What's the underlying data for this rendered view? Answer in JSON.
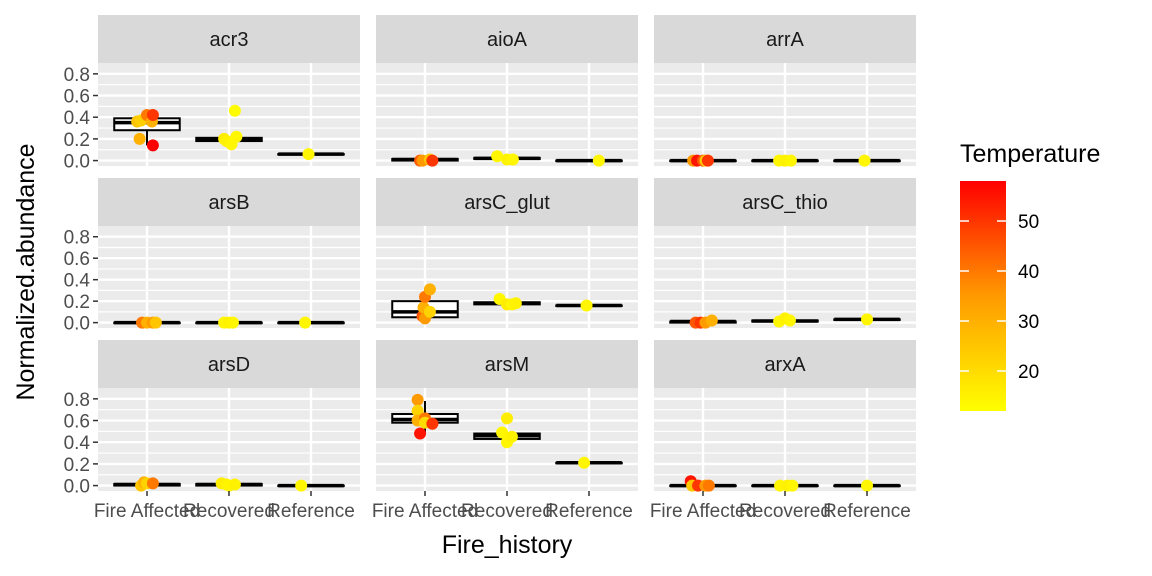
{
  "chart_data": {
    "type": "boxplot",
    "xlabel": "Fire_history",
    "ylabel": "Normalized.abundance",
    "categories": [
      "Fire Affected",
      "Recovered",
      "Reference"
    ],
    "ylim": [
      -0.05,
      0.9
    ],
    "yticks": [
      0.0,
      0.2,
      0.4,
      0.6,
      0.8
    ],
    "ytick_labels": [
      "0.0",
      "0.2",
      "0.4",
      "0.6",
      "0.8"
    ],
    "grid": true,
    "legend": {
      "title": "Temperature",
      "position": "right",
      "type": "colorbar",
      "range": [
        12,
        58
      ],
      "ticks": [
        20,
        30,
        40,
        50
      ],
      "tick_labels": [
        "20",
        "30",
        "40",
        "50"
      ],
      "colors": {
        "low": "#FFFF00",
        "high": "#FF0000"
      }
    },
    "panels": [
      {
        "name": "acr3",
        "boxes": [
          {
            "category": "Fire Affected",
            "q1": 0.28,
            "median": 0.35,
            "q3": 0.39,
            "lo": 0.14,
            "hi": 0.39
          },
          {
            "category": "Recovered",
            "q1": 0.18,
            "median": 0.19,
            "q3": 0.21,
            "lo": 0.18,
            "hi": 0.21
          },
          {
            "category": "Reference",
            "q1": 0.06,
            "median": 0.06,
            "q3": 0.06,
            "lo": 0.06,
            "hi": 0.06
          }
        ],
        "points": [
          {
            "category": "Fire Affected",
            "dx": -0.15,
            "y": 0.2,
            "t": 30
          },
          {
            "category": "Fire Affected",
            "dx": -0.2,
            "y": 0.36,
            "t": 25
          },
          {
            "category": "Fire Affected",
            "dx": -0.12,
            "y": 0.37,
            "t": 23
          },
          {
            "category": "Fire Affected",
            "dx": 0.0,
            "y": 0.42,
            "t": 40
          },
          {
            "category": "Fire Affected",
            "dx": 0.1,
            "y": 0.36,
            "t": 30
          },
          {
            "category": "Fire Affected",
            "dx": 0.12,
            "y": 0.42,
            "t": 50
          },
          {
            "category": "Fire Affected",
            "dx": 0.12,
            "y": 0.14,
            "t": 58
          },
          {
            "category": "Recovered",
            "dx": -0.1,
            "y": 0.2,
            "t": 16
          },
          {
            "category": "Recovered",
            "dx": -0.05,
            "y": 0.18,
            "t": 15
          },
          {
            "category": "Recovered",
            "dx": 0.05,
            "y": 0.15,
            "t": 14
          },
          {
            "category": "Recovered",
            "dx": 0.12,
            "y": 0.46,
            "t": 13
          },
          {
            "category": "Recovered",
            "dx": 0.15,
            "y": 0.22,
            "t": 14
          },
          {
            "category": "Reference",
            "dx": -0.05,
            "y": 0.06,
            "t": 14
          }
        ]
      },
      {
        "name": "aioA",
        "boxes": [
          {
            "category": "Fire Affected",
            "q1": 0.0,
            "median": 0.01,
            "q3": 0.015,
            "lo": 0.0,
            "hi": 0.02
          },
          {
            "category": "Recovered",
            "q1": 0.015,
            "median": 0.02,
            "q3": 0.025,
            "lo": 0.01,
            "hi": 0.03
          },
          {
            "category": "Reference",
            "q1": 0.0,
            "median": 0.0,
            "q3": 0.0,
            "lo": 0.0,
            "hi": 0.0
          }
        ],
        "points": [
          {
            "category": "Fire Affected",
            "dx": -0.1,
            "y": 0.0,
            "t": 45
          },
          {
            "category": "Fire Affected",
            "dx": -0.05,
            "y": 0.0,
            "t": 35
          },
          {
            "category": "Fire Affected",
            "dx": 0.1,
            "y": 0.01,
            "t": 25
          },
          {
            "category": "Fire Affected",
            "dx": 0.15,
            "y": 0.0,
            "t": 50
          },
          {
            "category": "Recovered",
            "dx": -0.2,
            "y": 0.04,
            "t": 14
          },
          {
            "category": "Recovered",
            "dx": 0.0,
            "y": 0.01,
            "t": 15
          },
          {
            "category": "Recovered",
            "dx": 0.12,
            "y": 0.01,
            "t": 14
          },
          {
            "category": "Reference",
            "dx": 0.2,
            "y": 0.0,
            "t": 14
          }
        ]
      },
      {
        "name": "arrA",
        "boxes": [
          {
            "category": "Fire Affected",
            "q1": 0.0,
            "median": 0.0,
            "q3": 0.0,
            "lo": 0.0,
            "hi": 0.0
          },
          {
            "category": "Recovered",
            "q1": 0.0,
            "median": 0.0,
            "q3": 0.0,
            "lo": 0.0,
            "hi": 0.0
          },
          {
            "category": "Reference",
            "q1": 0.0,
            "median": 0.0,
            "q3": 0.0,
            "lo": 0.0,
            "hi": 0.0
          }
        ],
        "points": [
          {
            "category": "Fire Affected",
            "dx": -0.2,
            "y": 0.0,
            "t": 35
          },
          {
            "category": "Fire Affected",
            "dx": -0.12,
            "y": 0.0,
            "t": 55
          },
          {
            "category": "Fire Affected",
            "dx": 0.0,
            "y": 0.0,
            "t": 45
          },
          {
            "category": "Fire Affected",
            "dx": 0.05,
            "y": 0.0,
            "t": 25
          },
          {
            "category": "Fire Affected",
            "dx": 0.1,
            "y": 0.0,
            "t": 50
          },
          {
            "category": "Recovered",
            "dx": -0.12,
            "y": 0.0,
            "t": 14
          },
          {
            "category": "Recovered",
            "dx": 0.0,
            "y": 0.0,
            "t": 15
          },
          {
            "category": "Recovered",
            "dx": 0.12,
            "y": 0.0,
            "t": 14
          },
          {
            "category": "Reference",
            "dx": -0.05,
            "y": 0.0,
            "t": 14
          }
        ]
      },
      {
        "name": "arsB",
        "boxes": [
          {
            "category": "Fire Affected",
            "q1": 0.0,
            "median": 0.0,
            "q3": 0.0,
            "lo": 0.0,
            "hi": 0.0
          },
          {
            "category": "Recovered",
            "q1": 0.0,
            "median": 0.0,
            "q3": 0.0,
            "lo": 0.0,
            "hi": 0.0
          },
          {
            "category": "Reference",
            "q1": 0.0,
            "median": 0.0,
            "q3": 0.0,
            "lo": 0.0,
            "hi": 0.0
          }
        ],
        "points": [
          {
            "category": "Fire Affected",
            "dx": -0.1,
            "y": 0.0,
            "t": 40
          },
          {
            "category": "Fire Affected",
            "dx": 0.0,
            "y": 0.0,
            "t": 30
          },
          {
            "category": "Fire Affected",
            "dx": 0.12,
            "y": 0.0,
            "t": 35
          },
          {
            "category": "Fire Affected",
            "dx": 0.18,
            "y": 0.0,
            "t": 25
          },
          {
            "category": "Recovered",
            "dx": -0.1,
            "y": 0.0,
            "t": 14
          },
          {
            "category": "Recovered",
            "dx": 0.0,
            "y": 0.0,
            "t": 15
          },
          {
            "category": "Recovered",
            "dx": 0.08,
            "y": 0.0,
            "t": 14
          },
          {
            "category": "Reference",
            "dx": -0.12,
            "y": 0.0,
            "t": 14
          }
        ]
      },
      {
        "name": "arsC_glut",
        "boxes": [
          {
            "category": "Fire Affected",
            "q1": 0.05,
            "median": 0.1,
            "q3": 0.2,
            "lo": 0.03,
            "hi": 0.31
          },
          {
            "category": "Recovered",
            "q1": 0.17,
            "median": 0.18,
            "q3": 0.19,
            "lo": 0.17,
            "hi": 0.2
          },
          {
            "category": "Reference",
            "q1": 0.16,
            "median": 0.16,
            "q3": 0.16,
            "lo": 0.16,
            "hi": 0.16
          }
        ],
        "points": [
          {
            "category": "Fire Affected",
            "dx": -0.05,
            "y": 0.06,
            "t": 45
          },
          {
            "category": "Fire Affected",
            "dx": -0.03,
            "y": 0.14,
            "t": 30
          },
          {
            "category": "Fire Affected",
            "dx": 0.0,
            "y": 0.24,
            "t": 40
          },
          {
            "category": "Fire Affected",
            "dx": 0.0,
            "y": 0.04,
            "t": 35
          },
          {
            "category": "Fire Affected",
            "dx": 0.1,
            "y": 0.31,
            "t": 30
          },
          {
            "category": "Fire Affected",
            "dx": 0.1,
            "y": 0.1,
            "t": 22
          },
          {
            "category": "Recovered",
            "dx": -0.15,
            "y": 0.22,
            "t": 14
          },
          {
            "category": "Recovered",
            "dx": 0.0,
            "y": 0.17,
            "t": 16
          },
          {
            "category": "Recovered",
            "dx": 0.1,
            "y": 0.17,
            "t": 14
          },
          {
            "category": "Recovered",
            "dx": 0.18,
            "y": 0.18,
            "t": 15
          },
          {
            "category": "Reference",
            "dx": -0.05,
            "y": 0.16,
            "t": 14
          }
        ]
      },
      {
        "name": "arsC_thio",
        "boxes": [
          {
            "category": "Fire Affected",
            "q1": 0.0,
            "median": 0.01,
            "q3": 0.01,
            "lo": 0.0,
            "hi": 0.02
          },
          {
            "category": "Recovered",
            "q1": 0.01,
            "median": 0.015,
            "q3": 0.02,
            "lo": 0.01,
            "hi": 0.03
          },
          {
            "category": "Reference",
            "q1": 0.03,
            "median": 0.03,
            "q3": 0.03,
            "lo": 0.03,
            "hi": 0.03
          }
        ],
        "points": [
          {
            "category": "Fire Affected",
            "dx": -0.15,
            "y": 0.0,
            "t": 45
          },
          {
            "category": "Fire Affected",
            "dx": -0.05,
            "y": 0.0,
            "t": 50
          },
          {
            "category": "Fire Affected",
            "dx": 0.05,
            "y": 0.0,
            "t": 35
          },
          {
            "category": "Fire Affected",
            "dx": 0.18,
            "y": 0.02,
            "t": 30
          },
          {
            "category": "Recovered",
            "dx": -0.12,
            "y": 0.01,
            "t": 14
          },
          {
            "category": "Recovered",
            "dx": 0.0,
            "y": 0.04,
            "t": 15
          },
          {
            "category": "Recovered",
            "dx": 0.1,
            "y": 0.02,
            "t": 14
          },
          {
            "category": "Reference",
            "dx": 0.0,
            "y": 0.03,
            "t": 14
          }
        ]
      },
      {
        "name": "arsD",
        "boxes": [
          {
            "category": "Fire Affected",
            "q1": 0.0,
            "median": 0.01,
            "q3": 0.015,
            "lo": 0.0,
            "hi": 0.02
          },
          {
            "category": "Recovered",
            "q1": 0.0,
            "median": 0.01,
            "q3": 0.015,
            "lo": 0.0,
            "hi": 0.02
          },
          {
            "category": "Reference",
            "q1": 0.0,
            "median": 0.0,
            "q3": 0.0,
            "lo": 0.0,
            "hi": 0.0
          }
        ],
        "points": [
          {
            "category": "Fire Affected",
            "dx": -0.12,
            "y": 0.0,
            "t": 25
          },
          {
            "category": "Fire Affected",
            "dx": -0.06,
            "y": 0.03,
            "t": 30
          },
          {
            "category": "Fire Affected",
            "dx": 0.0,
            "y": 0.02,
            "t": 22
          },
          {
            "category": "Fire Affected",
            "dx": 0.12,
            "y": 0.02,
            "t": 40
          },
          {
            "category": "Recovered",
            "dx": -0.15,
            "y": 0.02,
            "t": 16
          },
          {
            "category": "Recovered",
            "dx": -0.05,
            "y": 0.01,
            "t": 15
          },
          {
            "category": "Recovered",
            "dx": 0.0,
            "y": 0.0,
            "t": 14
          },
          {
            "category": "Recovered",
            "dx": 0.12,
            "y": 0.01,
            "t": 15
          },
          {
            "category": "Reference",
            "dx": -0.2,
            "y": 0.0,
            "t": 14
          }
        ]
      },
      {
        "name": "arsM",
        "boxes": [
          {
            "category": "Fire Affected",
            "q1": 0.58,
            "median": 0.61,
            "q3": 0.66,
            "lo": 0.48,
            "hi": 0.78
          },
          {
            "category": "Recovered",
            "q1": 0.43,
            "median": 0.46,
            "q3": 0.48,
            "lo": 0.4,
            "hi": 0.5
          },
          {
            "category": "Reference",
            "q1": 0.21,
            "median": 0.21,
            "q3": 0.21,
            "lo": 0.21,
            "hi": 0.21
          }
        ],
        "points": [
          {
            "category": "Fire Affected",
            "dx": -0.15,
            "y": 0.79,
            "t": 35
          },
          {
            "category": "Fire Affected",
            "dx": -0.15,
            "y": 0.69,
            "t": 22
          },
          {
            "category": "Fire Affected",
            "dx": -0.15,
            "y": 0.6,
            "t": 30
          },
          {
            "category": "Fire Affected",
            "dx": -0.1,
            "y": 0.48,
            "t": 55
          },
          {
            "category": "Fire Affected",
            "dx": 0.0,
            "y": 0.62,
            "t": 40
          },
          {
            "category": "Fire Affected",
            "dx": 0.0,
            "y": 0.58,
            "t": 20
          },
          {
            "category": "Fire Affected",
            "dx": 0.15,
            "y": 0.57,
            "t": 50
          },
          {
            "category": "Recovered",
            "dx": -0.1,
            "y": 0.49,
            "t": 14
          },
          {
            "category": "Recovered",
            "dx": 0.0,
            "y": 0.62,
            "t": 16
          },
          {
            "category": "Recovered",
            "dx": 0.0,
            "y": 0.4,
            "t": 14
          },
          {
            "category": "Recovered",
            "dx": 0.1,
            "y": 0.45,
            "t": 15
          },
          {
            "category": "Reference",
            "dx": -0.1,
            "y": 0.21,
            "t": 14
          }
        ]
      },
      {
        "name": "arxA",
        "boxes": [
          {
            "category": "Fire Affected",
            "q1": 0.0,
            "median": 0.0,
            "q3": 0.0,
            "lo": 0.0,
            "hi": 0.0
          },
          {
            "category": "Recovered",
            "q1": 0.0,
            "median": 0.0,
            "q3": 0.0,
            "lo": 0.0,
            "hi": 0.0
          },
          {
            "category": "Reference",
            "q1": 0.0,
            "median": 0.0,
            "q3": 0.0,
            "lo": 0.0,
            "hi": 0.0
          }
        ],
        "points": [
          {
            "category": "Fire Affected",
            "dx": -0.25,
            "y": 0.04,
            "t": 55
          },
          {
            "category": "Fire Affected",
            "dx": -0.22,
            "y": 0.0,
            "t": 25
          },
          {
            "category": "Fire Affected",
            "dx": -0.1,
            "y": 0.0,
            "t": 50
          },
          {
            "category": "Fire Affected",
            "dx": 0.05,
            "y": 0.0,
            "t": 35
          },
          {
            "category": "Fire Affected",
            "dx": 0.12,
            "y": 0.0,
            "t": 40
          },
          {
            "category": "Recovered",
            "dx": -0.1,
            "y": 0.0,
            "t": 14
          },
          {
            "category": "Recovered",
            "dx": 0.05,
            "y": 0.0,
            "t": 15
          },
          {
            "category": "Recovered",
            "dx": 0.15,
            "y": 0.0,
            "t": 14
          },
          {
            "category": "Reference",
            "dx": 0.0,
            "y": 0.0,
            "t": 14
          }
        ]
      }
    ]
  }
}
